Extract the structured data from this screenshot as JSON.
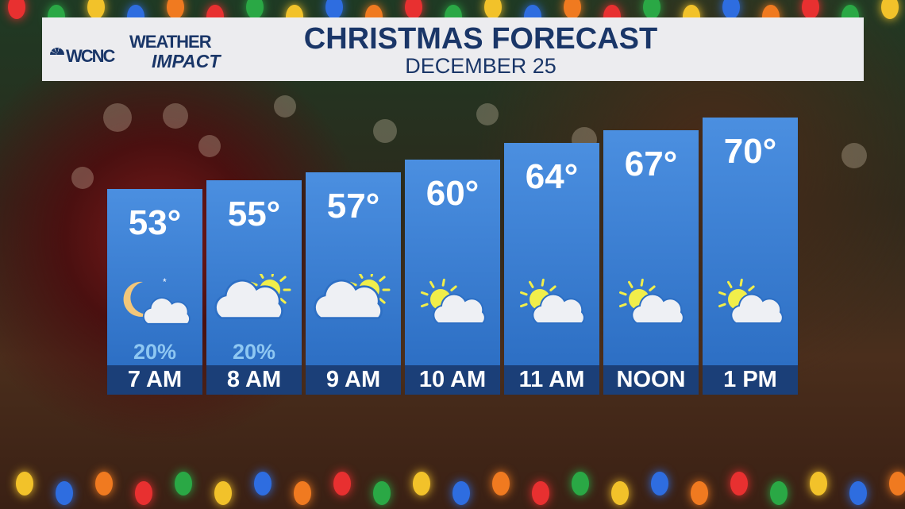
{
  "header": {
    "logo_station": "WCNC",
    "logo_line1": "WEATHER",
    "logo_line2": "IMPACT",
    "title": "CHRISTMAS FORECAST",
    "subtitle": "DECEMBER 25"
  },
  "colors": {
    "bar": "#3a7fd6",
    "label_strip": "#1b3f78",
    "precip": "#8ec7f2",
    "header_text": "#1a3668"
  },
  "chart_data": {
    "type": "bar",
    "categories": [
      "7 AM",
      "8 AM",
      "9 AM",
      "10 AM",
      "11 AM",
      "NOON",
      "1 PM"
    ],
    "values": [
      53,
      55,
      57,
      60,
      64,
      67,
      70
    ],
    "value_labels": [
      "53°",
      "55°",
      "57°",
      "60°",
      "64°",
      "67°",
      "70°"
    ],
    "precip": [
      "20%",
      "20%",
      "",
      "",
      "",
      "",
      ""
    ],
    "icons": [
      "moon-cloud-icon",
      "cloud-sun-icon",
      "cloud-sun-icon",
      "sun-cloud-icon",
      "sun-cloud-icon",
      "sun-cloud-icon",
      "sun-cloud-icon"
    ],
    "unit": "°F"
  }
}
